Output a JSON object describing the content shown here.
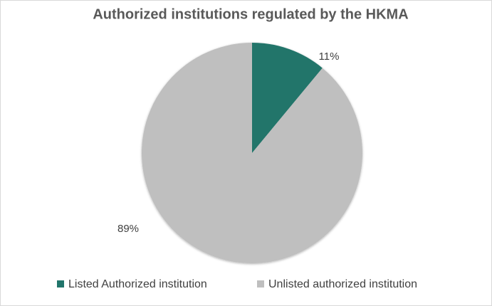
{
  "chart_data": {
    "type": "pie",
    "title": "Authorized institutions regulated by the HKMA",
    "categories": [
      "Listed Authorized institution",
      "Unlisted authorized institution"
    ],
    "values": [
      11,
      89
    ],
    "value_labels": [
      "11%",
      "89%"
    ],
    "colors": [
      "#21756b",
      "#bfbfbf"
    ],
    "legend": "bottom"
  }
}
